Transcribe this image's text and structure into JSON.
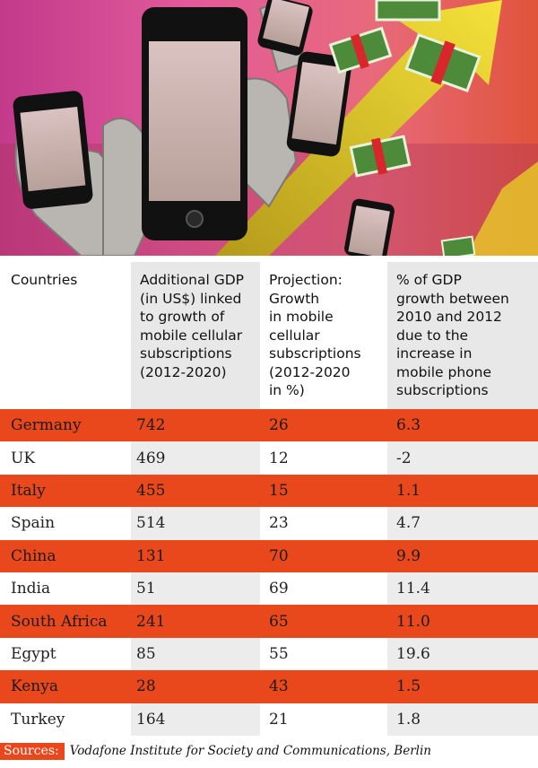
{
  "chart_data": {
    "type": "table",
    "columns": [
      "Countries",
      "Additional GDP (in US$) linked to growth of mobile cellular subscriptions (2012-2020)",
      "Projection: Growth in mobile cellular subscriptions (2012-2020 in %)",
      "% of GDP growth between 2010 and 2012 due to the increase in mobile phone subscriptions"
    ],
    "header_lines": [
      [
        "Countries"
      ],
      [
        "Additional GDP",
        "(in US$) linked",
        "to growth of",
        "mobile cellular",
        "subscriptions",
        "(2012-2020)"
      ],
      [
        "Projection:",
        "Growth",
        "in mobile",
        "cellular",
        "subscriptions",
        "(2012-2020",
        "in %)"
      ],
      [
        "% of GDP",
        "growth between",
        "2010 and 2012",
        "due to the",
        "increase in",
        "mobile phone",
        "subscriptions"
      ]
    ],
    "rows": [
      [
        "Germany",
        "742",
        "26",
        "6.3"
      ],
      [
        "UK",
        "469",
        "12",
        "-2"
      ],
      [
        "Italy",
        "455",
        "15",
        "1.1"
      ],
      [
        "Spain",
        "514",
        "23",
        "4.7"
      ],
      [
        "China",
        "131",
        "70",
        "9.9"
      ],
      [
        "India",
        "51",
        "69",
        "11.4"
      ],
      [
        "South Africa",
        "241",
        "65",
        "11.0"
      ],
      [
        "Egypt",
        "85",
        "55",
        "19.6"
      ],
      [
        "Kenya",
        "28",
        "43",
        "1.5"
      ],
      [
        "Turkey",
        "164",
        "21",
        "1.8"
      ]
    ]
  },
  "sources": {
    "label": "Sources:",
    "text": "Vodafone Institute for Society and Communications, Berlin"
  },
  "colors": {
    "accent": "#e8481c",
    "header_shade": "#e8e8e8"
  },
  "illustration": {
    "icons": [
      "smartphone-icon",
      "hand-icon",
      "banknote-stack-icon",
      "growth-arrow-icon"
    ]
  }
}
